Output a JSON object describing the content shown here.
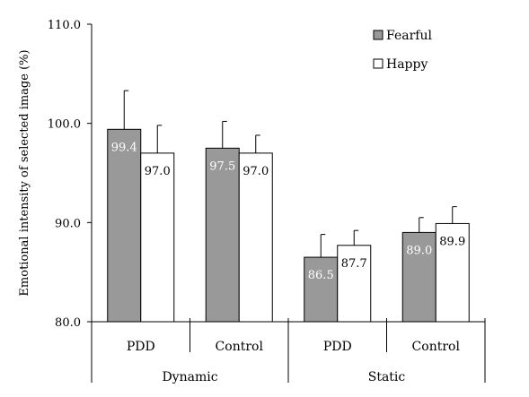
{
  "chart_data": {
    "type": "bar",
    "ylabel": "Emotional intensity of selected image (%)",
    "ylim": [
      80,
      110
    ],
    "yticks": [
      "80.0",
      "90.0",
      "100.0",
      "110.0"
    ],
    "grid": false,
    "legend_position": "top-right",
    "categories": [
      "PDD",
      "Control",
      "PDD",
      "Control"
    ],
    "groups": [
      "Dynamic",
      "Static"
    ],
    "series": [
      {
        "name": "Fearful",
        "color": "#999999",
        "values": [
          99.4,
          97.5,
          86.5,
          89.0
        ],
        "labels": [
          "99.4",
          "97.5",
          "86.5",
          "89.0"
        ],
        "errors": [
          3.9,
          2.7,
          2.3,
          1.5
        ]
      },
      {
        "name": "Happy",
        "color": "#ffffff",
        "values": [
          97.0,
          97.0,
          87.7,
          89.9
        ],
        "labels": [
          "97.0",
          "97.0",
          "87.7",
          "89.9"
        ],
        "errors": [
          2.8,
          1.8,
          1.5,
          1.7
        ]
      }
    ]
  }
}
